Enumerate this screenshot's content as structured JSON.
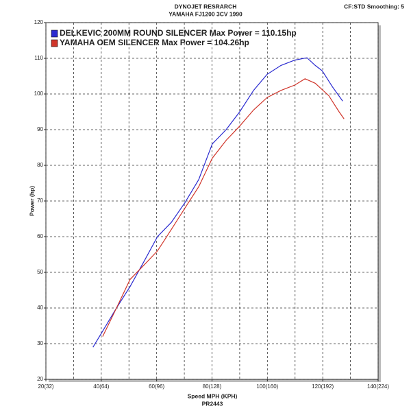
{
  "chart_data": {
    "type": "line",
    "title": "DYNOJET RESRARCH",
    "subtitle": "YAMAHA FJ1200 3CV 1990",
    "annotation": "CF:STD Smoothing: 5",
    "xlabel": "Speed MPH (KPH)",
    "footer": "PR2443",
    "ylabel": "Power (hp)",
    "xlim": [
      20,
      140
    ],
    "ylim": [
      20,
      120
    ],
    "xticks": [
      {
        "value": 20,
        "label": "20(32)"
      },
      {
        "value": 40,
        "label": "40(64)"
      },
      {
        "value": 60,
        "label": "60(96)"
      },
      {
        "value": 80,
        "label": "80(128)"
      },
      {
        "value": 100,
        "label": "100(160)"
      },
      {
        "value": 120,
        "label": "120(192)"
      },
      {
        "value": 140,
        "label": "140(224)"
      }
    ],
    "xminorticks": [
      30,
      50,
      70,
      90,
      110,
      130
    ],
    "yticks": [
      20,
      30,
      40,
      50,
      60,
      70,
      80,
      90,
      100,
      110,
      120
    ],
    "grid": true,
    "legend": "top-left",
    "series": [
      {
        "name": "DELKEVIC 200MM ROUND SILENCER Max Power = 110.15hp",
        "color": "#2a2ad0",
        "x": [
          37,
          40.5,
          45.5,
          50.4,
          55.4,
          60.3,
          65.3,
          70.2,
          75.2,
          80.1,
          85.1,
          90,
          95,
          99.9,
          104.9,
          109.9,
          114.3,
          117.3,
          119.8,
          123.5,
          127.2
        ],
        "values": [
          29,
          33.5,
          40,
          46,
          53,
          60,
          64,
          69.5,
          76,
          86,
          90,
          95,
          101,
          105.5,
          108,
          109.5,
          110.15,
          108,
          106.5,
          102,
          98
        ]
      },
      {
        "name": "YAMAHA OEM SILENCER Max Power = 104.26hp",
        "color": "#d0352a",
        "x": [
          40.5,
          45.5,
          50.4,
          55.4,
          60.3,
          65.3,
          70.2,
          75.2,
          80.1,
          85.1,
          90,
          95,
          99.9,
          104.9,
          109.9,
          113.6,
          117.3,
          122.2,
          125.9,
          127.7
        ],
        "values": [
          32,
          40,
          48,
          52,
          56,
          62,
          68,
          74,
          82,
          87,
          91,
          95.5,
          99,
          101,
          102.5,
          104.26,
          103,
          99.5,
          95,
          93
        ]
      }
    ]
  }
}
